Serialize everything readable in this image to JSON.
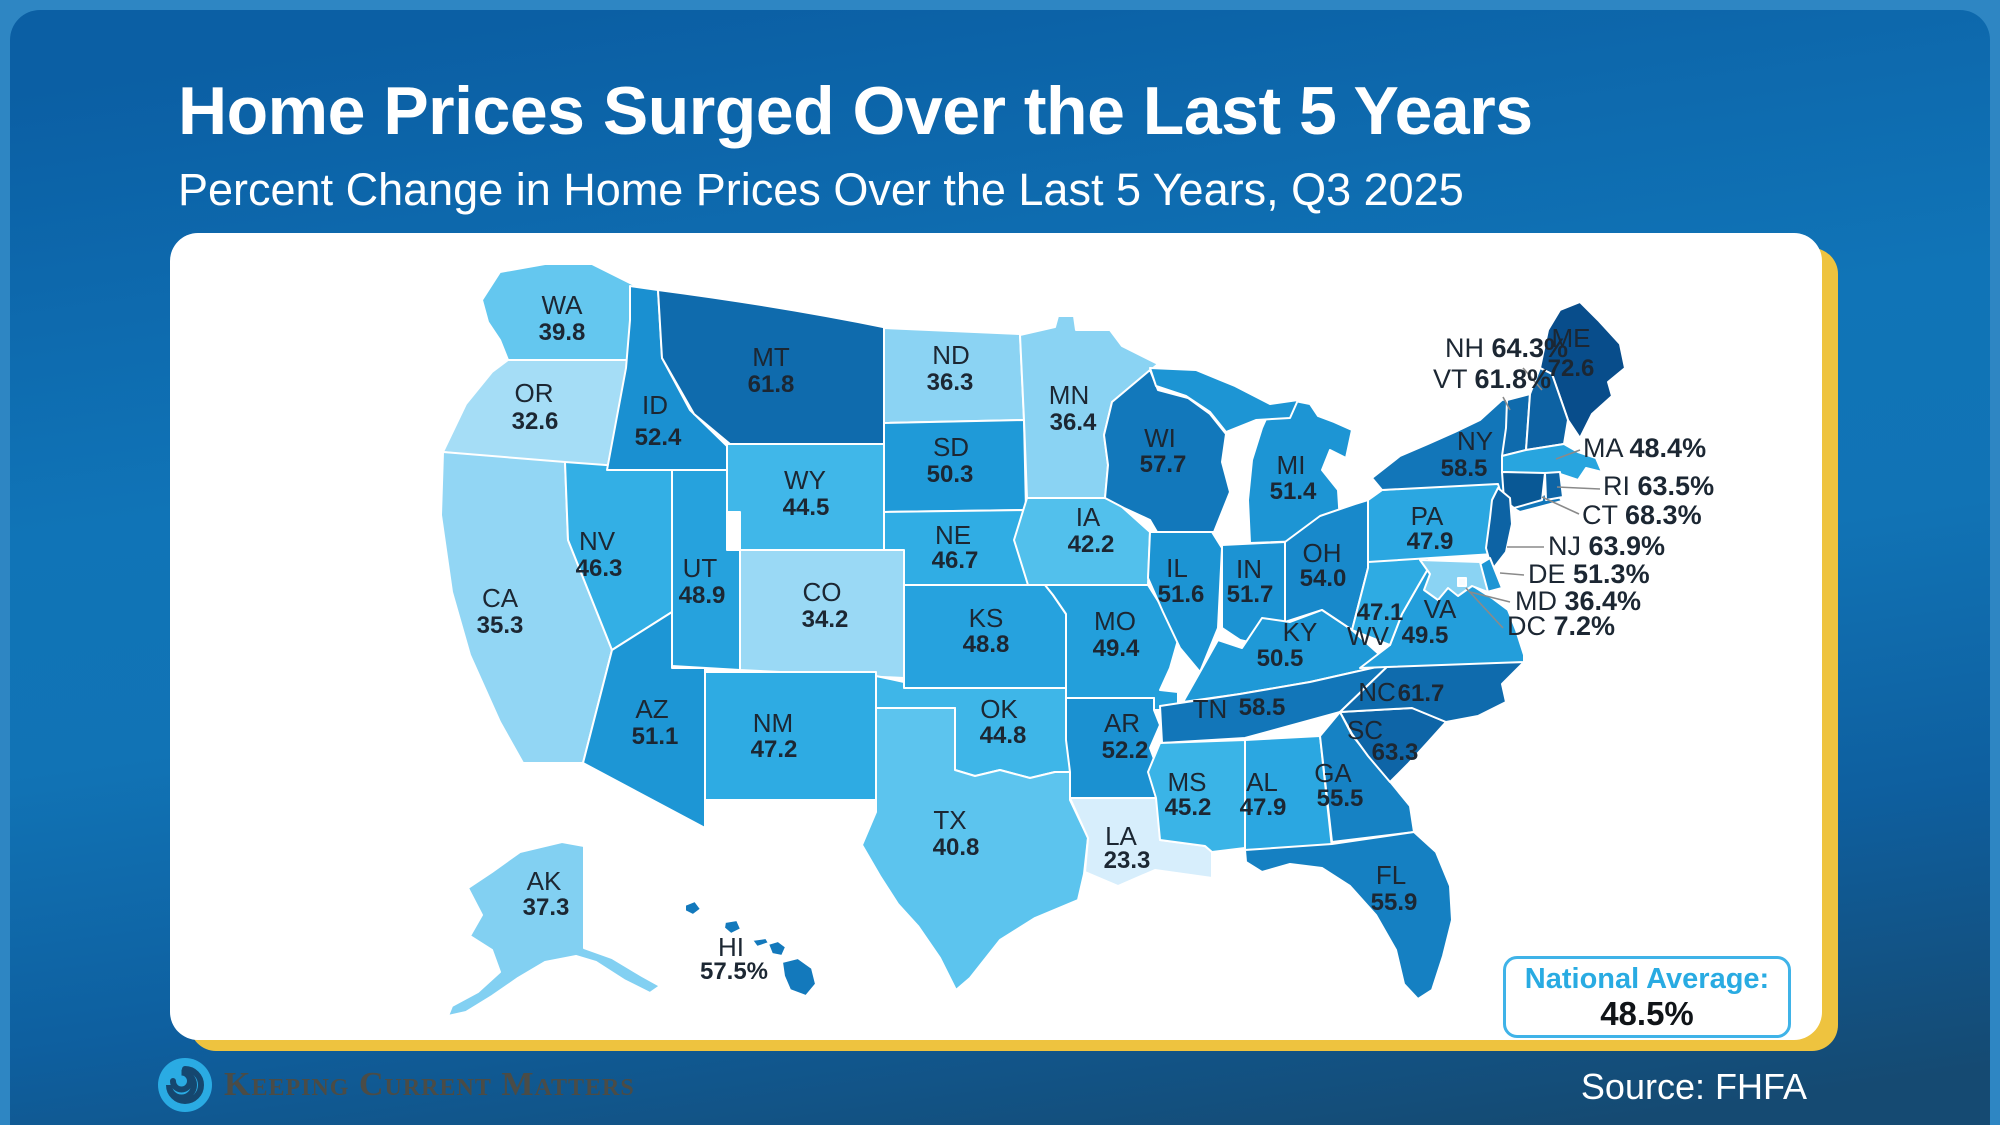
{
  "title": "Home Prices Surged Over the Last 5 Years",
  "subtitle": "Percent Change in Home Prices Over the Last 5 Years, Q3 2025",
  "source_label": "Source: FHFA",
  "brand_name": "Keeping Current Matters",
  "national_average": {
    "label": "National Average:",
    "value": "48.5%"
  },
  "chart_data": {
    "type": "choropleth",
    "title": "Percent Change in Home Prices Over the Last 5 Years, Q3 2025",
    "unit": "%",
    "source": "FHFA",
    "states": [
      {
        "abbr": "WA",
        "value": 39.8,
        "display": "39.8"
      },
      {
        "abbr": "OR",
        "value": 32.6,
        "display": "32.6"
      },
      {
        "abbr": "CA",
        "value": 35.3,
        "display": "35.3"
      },
      {
        "abbr": "NV",
        "value": 46.3,
        "display": "46.3"
      },
      {
        "abbr": "ID",
        "value": 52.4,
        "display": "52.4"
      },
      {
        "abbr": "MT",
        "value": 61.8,
        "display": "61.8"
      },
      {
        "abbr": "WY",
        "value": 44.5,
        "display": "44.5"
      },
      {
        "abbr": "UT",
        "value": 48.9,
        "display": "48.9"
      },
      {
        "abbr": "CO",
        "value": 34.2,
        "display": "34.2"
      },
      {
        "abbr": "AZ",
        "value": 51.1,
        "display": "51.1"
      },
      {
        "abbr": "NM",
        "value": 47.2,
        "display": "47.2"
      },
      {
        "abbr": "ND",
        "value": 36.3,
        "display": "36.3"
      },
      {
        "abbr": "SD",
        "value": 50.3,
        "display": "50.3"
      },
      {
        "abbr": "NE",
        "value": 46.7,
        "display": "46.7"
      },
      {
        "abbr": "KS",
        "value": 48.8,
        "display": "48.8"
      },
      {
        "abbr": "OK",
        "value": 44.8,
        "display": "44.8"
      },
      {
        "abbr": "TX",
        "value": 40.8,
        "display": "40.8"
      },
      {
        "abbr": "MN",
        "value": 36.4,
        "display": "36.4"
      },
      {
        "abbr": "IA",
        "value": 42.2,
        "display": "42.2"
      },
      {
        "abbr": "MO",
        "value": 49.4,
        "display": "49.4"
      },
      {
        "abbr": "AR",
        "value": 52.2,
        "display": "52.2"
      },
      {
        "abbr": "LA",
        "value": 23.3,
        "display": "23.3"
      },
      {
        "abbr": "WI",
        "value": 57.7,
        "display": "57.7"
      },
      {
        "abbr": "IL",
        "value": 51.6,
        "display": "51.6"
      },
      {
        "abbr": "MI",
        "value": 51.4,
        "display": "51.4"
      },
      {
        "abbr": "IN",
        "value": 51.7,
        "display": "51.7"
      },
      {
        "abbr": "OH",
        "value": 54.0,
        "display": "54.0"
      },
      {
        "abbr": "KY",
        "value": 50.5,
        "display": "50.5"
      },
      {
        "abbr": "TN",
        "value": 58.5,
        "display": "58.5"
      },
      {
        "abbr": "MS",
        "value": 45.2,
        "display": "45.2"
      },
      {
        "abbr": "AL",
        "value": 47.9,
        "display": "47.9"
      },
      {
        "abbr": "GA",
        "value": 55.5,
        "display": "55.5"
      },
      {
        "abbr": "FL",
        "value": 55.9,
        "display": "55.9"
      },
      {
        "abbr": "SC",
        "value": 63.3,
        "display": "63.3"
      },
      {
        "abbr": "NC",
        "value": 61.7,
        "display": "61.7"
      },
      {
        "abbr": "VA",
        "value": 49.5,
        "display": "49.5"
      },
      {
        "abbr": "WV",
        "value": 47.1,
        "display": "47.1"
      },
      {
        "abbr": "PA",
        "value": 47.9,
        "display": "47.9"
      },
      {
        "abbr": "NY",
        "value": 58.5,
        "display": "58.5"
      },
      {
        "abbr": "ME",
        "value": 72.6,
        "display": "72.6"
      },
      {
        "abbr": "VT",
        "value": 61.8,
        "display": "61.8%"
      },
      {
        "abbr": "NH",
        "value": 64.3,
        "display": "64.3%"
      },
      {
        "abbr": "MA",
        "value": 48.4,
        "display": "48.4%"
      },
      {
        "abbr": "RI",
        "value": 63.5,
        "display": "63.5%"
      },
      {
        "abbr": "CT",
        "value": 68.3,
        "display": "68.3%"
      },
      {
        "abbr": "NJ",
        "value": 63.9,
        "display": "63.9%"
      },
      {
        "abbr": "DE",
        "value": 51.3,
        "display": "51.3%"
      },
      {
        "abbr": "MD",
        "value": 36.4,
        "display": "36.4%"
      },
      {
        "abbr": "DC",
        "value": 7.2,
        "display": "7.2%"
      },
      {
        "abbr": "AK",
        "value": 37.3,
        "display": "37.3"
      },
      {
        "abbr": "HI",
        "value": 57.5,
        "display": "57.5%"
      }
    ],
    "color_scale": {
      "stops": [
        [
          7,
          "#f7fcff"
        ],
        [
          23,
          "#d9effc"
        ],
        [
          33,
          "#a3dcf6"
        ],
        [
          37,
          "#86d1f2"
        ],
        [
          40,
          "#62c6ef"
        ],
        [
          43,
          "#4cbeeb"
        ],
        [
          46,
          "#34b0e6"
        ],
        [
          48,
          "#2aa7e1"
        ],
        [
          50,
          "#209bd9"
        ],
        [
          52,
          "#1b92d2"
        ],
        [
          54,
          "#1889cb"
        ],
        [
          56,
          "#157fc2"
        ],
        [
          58,
          "#1277ba"
        ],
        [
          60,
          "#1071b4"
        ],
        [
          62,
          "#0f6aac"
        ],
        [
          64,
          "#0d63a4"
        ],
        [
          66,
          "#0b5d9d"
        ],
        [
          69,
          "#095693"
        ],
        [
          73,
          "#084c8a"
        ]
      ]
    },
    "callout_states": [
      "NH",
      "VT",
      "MA",
      "RI",
      "CT",
      "NJ",
      "DE",
      "MD",
      "DC"
    ]
  }
}
